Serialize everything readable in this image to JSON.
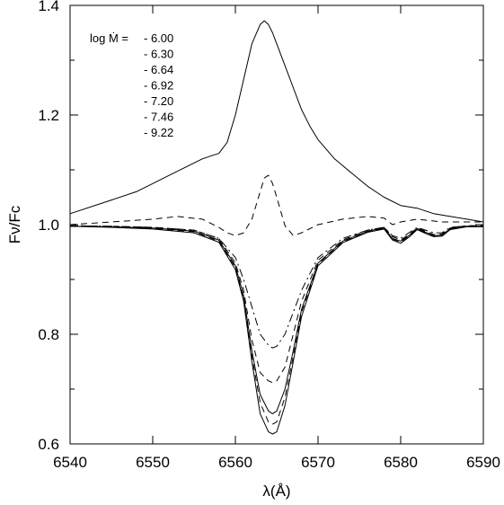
{
  "chart_data": {
    "type": "line",
    "xlabel": "λ(Å)",
    "ylabel": "Fν/Fc",
    "xlim": [
      6540,
      6590
    ],
    "ylim": [
      0.6,
      1.4
    ],
    "x_ticks": [
      6540,
      6550,
      6560,
      6570,
      6580,
      6590
    ],
    "y_ticks": [
      0.6,
      0.8,
      1.0,
      1.2,
      1.4
    ],
    "x_tick_labels": [
      "6540",
      "6550",
      "6560",
      "6570",
      "6580",
      "6590"
    ],
    "y_tick_labels": [
      "0.6",
      "0.8",
      "1.0",
      "1.2",
      "1.4"
    ],
    "grid": false,
    "legend": {
      "title": "log Ṁ =",
      "placement": "top-left",
      "entries": [
        "- 6.00",
        "- 6.30",
        "- 6.64",
        "- 6.92",
        "- 7.20",
        "- 7.46",
        "- 9.22"
      ]
    },
    "series": [
      {
        "name": "- 6.00",
        "dash": "solid",
        "x": [
          6540,
          6545,
          6548,
          6550,
          6552,
          6554,
          6556,
          6557,
          6558,
          6559,
          6560,
          6561,
          6562,
          6563,
          6563.5,
          6564,
          6564.5,
          6565,
          6566,
          6567,
          6568,
          6569,
          6570,
          6572,
          6574,
          6576,
          6578,
          6580,
          6582,
          6584,
          6586,
          6588,
          6590
        ],
        "y": [
          1.02,
          1.045,
          1.06,
          1.075,
          1.09,
          1.105,
          1.12,
          1.125,
          1.13,
          1.15,
          1.2,
          1.265,
          1.33,
          1.365,
          1.372,
          1.365,
          1.35,
          1.33,
          1.29,
          1.25,
          1.21,
          1.18,
          1.155,
          1.12,
          1.095,
          1.07,
          1.05,
          1.035,
          1.03,
          1.02,
          1.015,
          1.01,
          1.005
        ]
      },
      {
        "name": "- 6.30",
        "dash": "dashed",
        "x": [
          6540,
          6545,
          6550,
          6553,
          6556,
          6558,
          6559,
          6560,
          6561,
          6562,
          6563,
          6563.5,
          6564,
          6564.5,
          6565,
          6566,
          6567,
          6568,
          6570,
          6573,
          6576,
          6578,
          6579,
          6580,
          6582,
          6585,
          6590
        ],
        "y": [
          1.0,
          1.005,
          1.01,
          1.015,
          1.01,
          0.995,
          0.985,
          0.98,
          0.985,
          1.01,
          1.06,
          1.085,
          1.09,
          1.075,
          1.05,
          0.998,
          0.98,
          0.985,
          1.0,
          1.01,
          1.015,
          1.012,
          1.0,
          1.005,
          1.01,
          1.005,
          1.005
        ]
      },
      {
        "name": "- 6.64",
        "dash": "dashdot",
        "x": [
          6540,
          6545,
          6550,
          6555,
          6558,
          6560,
          6561,
          6562,
          6563,
          6564,
          6564.5,
          6565,
          6566,
          6567,
          6568,
          6570,
          6573,
          6576,
          6578,
          6579,
          6580,
          6581,
          6582,
          6583,
          6584,
          6585,
          6586,
          6588,
          6590
        ],
        "y": [
          0.998,
          0.997,
          0.995,
          0.99,
          0.975,
          0.94,
          0.9,
          0.85,
          0.8,
          0.78,
          0.775,
          0.778,
          0.8,
          0.84,
          0.88,
          0.94,
          0.975,
          0.99,
          0.995,
          0.98,
          0.975,
          0.985,
          0.995,
          0.99,
          0.985,
          0.985,
          0.995,
          0.998,
          0.998
        ]
      },
      {
        "name": "- 6.92",
        "dash": "dashed",
        "x": [
          6540,
          6545,
          6550,
          6555,
          6558,
          6560,
          6561,
          6562,
          6563,
          6564,
          6564.5,
          6565,
          6566,
          6567,
          6568,
          6570,
          6573,
          6576,
          6578,
          6579,
          6580,
          6581,
          6582,
          6583,
          6584,
          6585,
          6586,
          6588,
          6590
        ],
        "y": [
          0.998,
          0.997,
          0.995,
          0.99,
          0.975,
          0.93,
          0.88,
          0.79,
          0.73,
          0.715,
          0.712,
          0.715,
          0.74,
          0.8,
          0.86,
          0.935,
          0.972,
          0.99,
          0.995,
          0.978,
          0.972,
          0.982,
          0.994,
          0.988,
          0.982,
          0.983,
          0.994,
          0.998,
          0.998
        ]
      },
      {
        "name": "- 7.20",
        "dash": "solid",
        "x": [
          6540,
          6545,
          6550,
          6555,
          6558,
          6560,
          6561,
          6562,
          6563,
          6564,
          6564.5,
          6565,
          6566,
          6567,
          6568,
          6570,
          6573,
          6576,
          6578,
          6579,
          6580,
          6581,
          6582,
          6583,
          6584,
          6585,
          6586,
          6588,
          6590
        ],
        "y": [
          0.997,
          0.996,
          0.994,
          0.988,
          0.972,
          0.925,
          0.87,
          0.77,
          0.69,
          0.66,
          0.655,
          0.66,
          0.7,
          0.77,
          0.845,
          0.93,
          0.97,
          0.988,
          0.994,
          0.975,
          0.97,
          0.98,
          0.993,
          0.986,
          0.98,
          0.981,
          0.993,
          0.997,
          0.997
        ]
      },
      {
        "name": "- 7.46",
        "dash": "dashed",
        "x": [
          6540,
          6545,
          6550,
          6555,
          6558,
          6560,
          6561,
          6562,
          6563,
          6564,
          6564.5,
          6565,
          6566,
          6567,
          6568,
          6570,
          6573,
          6576,
          6578,
          6579,
          6580,
          6581,
          6582,
          6583,
          6584,
          6585,
          6586,
          6588,
          6590
        ],
        "y": [
          0.997,
          0.996,
          0.993,
          0.987,
          0.97,
          0.922,
          0.865,
          0.76,
          0.675,
          0.64,
          0.636,
          0.64,
          0.685,
          0.76,
          0.84,
          0.928,
          0.969,
          0.987,
          0.993,
          0.974,
          0.968,
          0.979,
          0.992,
          0.985,
          0.979,
          0.98,
          0.992,
          0.997,
          0.997
        ]
      },
      {
        "name": "- 9.22",
        "dash": "solid",
        "x": [
          6540,
          6545,
          6550,
          6555,
          6558,
          6560,
          6561,
          6562,
          6563,
          6564,
          6564.5,
          6565,
          6566,
          6567,
          6568,
          6570,
          6573,
          6576,
          6578,
          6579,
          6580,
          6581,
          6582,
          6583,
          6584,
          6585,
          6586,
          6588,
          6590
        ],
        "y": [
          0.997,
          0.995,
          0.992,
          0.985,
          0.968,
          0.918,
          0.86,
          0.75,
          0.655,
          0.622,
          0.618,
          0.622,
          0.67,
          0.75,
          0.832,
          0.925,
          0.967,
          0.986,
          0.992,
          0.972,
          0.966,
          0.977,
          0.991,
          0.984,
          0.978,
          0.979,
          0.991,
          0.996,
          0.996
        ]
      }
    ]
  }
}
